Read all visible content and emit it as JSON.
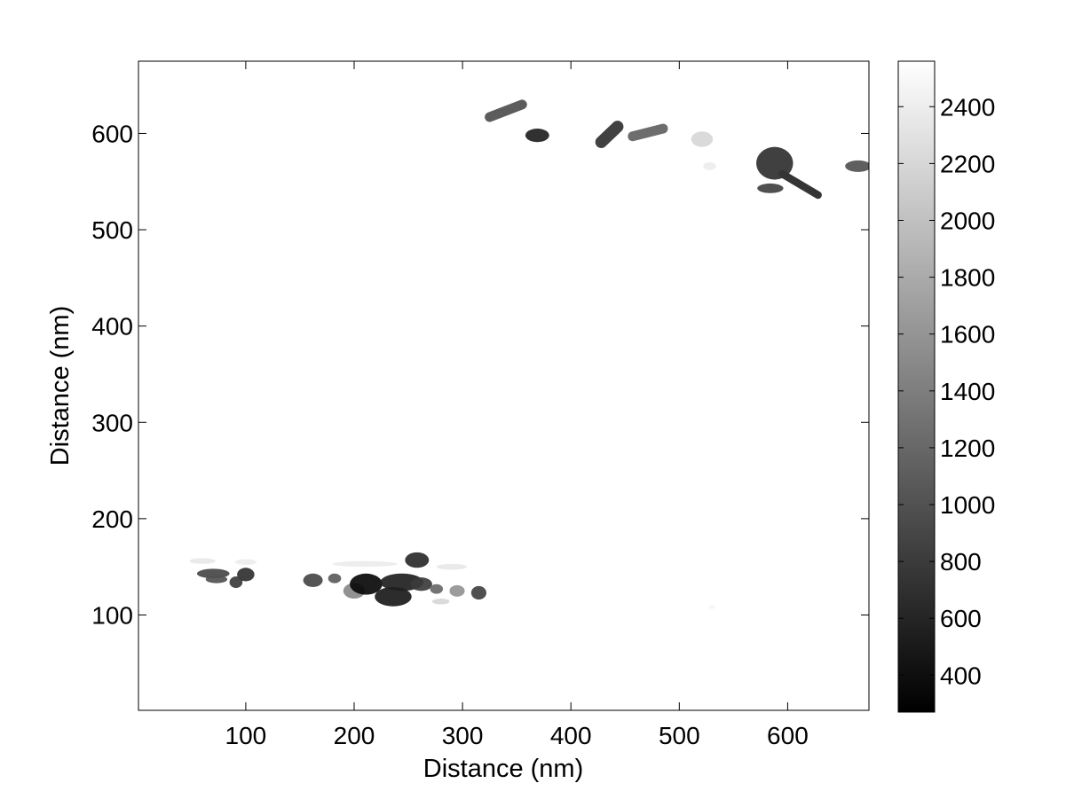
{
  "chart_data": {
    "type": "heatmap",
    "title": "",
    "xlabel": "Distance (nm)",
    "ylabel": "Distance (nm)",
    "xlim": [
      1,
      675
    ],
    "ylim": [
      1,
      675
    ],
    "xticks": [
      100,
      200,
      300,
      400,
      500,
      600
    ],
    "yticks": [
      100,
      200,
      300,
      400,
      500,
      600
    ],
    "xtick_labels": [
      "100",
      "200",
      "300",
      "400",
      "500",
      "600"
    ],
    "ytick_labels": [
      "100",
      "200",
      "300",
      "400",
      "500",
      "600"
    ],
    "colormap": "gray",
    "colorbar": {
      "range": [
        270,
        2560
      ],
      "ticks": [
        400,
        600,
        800,
        1000,
        1200,
        1400,
        1600,
        1800,
        2000,
        2200,
        2400
      ],
      "tick_labels": [
        "400",
        "600",
        "800",
        "1000",
        "1200",
        "1400",
        "1600",
        "1800",
        "2000",
        "2200",
        "2400"
      ]
    },
    "background_value": 2560,
    "features": [
      {
        "shape": "rod",
        "x1": 325,
        "y1": 617,
        "x2": 355,
        "y2": 630,
        "w": 9,
        "value": 1100
      },
      {
        "shape": "ellipse",
        "x": 369,
        "y": 598,
        "rx": 11,
        "ry": 7,
        "value": 560
      },
      {
        "shape": "rod",
        "x1": 428,
        "y1": 591,
        "x2": 443,
        "y2": 607,
        "w": 11,
        "value": 850
      },
      {
        "shape": "rod",
        "x1": 457,
        "y1": 597,
        "x2": 485,
        "y2": 605,
        "w": 9,
        "value": 1250
      },
      {
        "shape": "ellipse",
        "x": 521,
        "y": 594,
        "rx": 10,
        "ry": 8,
        "value": 2200
      },
      {
        "shape": "ellipse",
        "x": 528,
        "y": 566,
        "rx": 6,
        "ry": 4,
        "value": 2400
      },
      {
        "shape": "ellipse",
        "x": 588,
        "y": 569,
        "rx": 17,
        "ry": 17,
        "value": 700
      },
      {
        "shape": "rod",
        "x1": 595,
        "y1": 558,
        "x2": 628,
        "y2": 536,
        "w": 7,
        "value": 750
      },
      {
        "shape": "ellipse",
        "x": 584,
        "y": 543,
        "rx": 12,
        "ry": 5,
        "value": 850
      },
      {
        "shape": "ellipse",
        "x": 665,
        "y": 566,
        "rx": 12,
        "ry": 6,
        "value": 1000
      },
      {
        "shape": "ellipse",
        "x": 70,
        "y": 143,
        "rx": 15,
        "ry": 5,
        "value": 900
      },
      {
        "shape": "ellipse",
        "x": 73,
        "y": 137,
        "rx": 10,
        "ry": 4,
        "value": 1000
      },
      {
        "shape": "ellipse",
        "x": 100,
        "y": 142,
        "rx": 8,
        "ry": 7,
        "value": 700
      },
      {
        "shape": "ellipse",
        "x": 91,
        "y": 134,
        "rx": 6,
        "ry": 6,
        "value": 800
      },
      {
        "shape": "ellipse",
        "x": 162,
        "y": 136,
        "rx": 9,
        "ry": 7,
        "value": 900
      },
      {
        "shape": "ellipse",
        "x": 182,
        "y": 138,
        "rx": 6,
        "ry": 5,
        "value": 1100
      },
      {
        "shape": "ellipse",
        "x": 200,
        "y": 125,
        "rx": 10,
        "ry": 8,
        "value": 1500
      },
      {
        "shape": "ellipse",
        "x": 211,
        "y": 132,
        "rx": 15,
        "ry": 11,
        "value": 350
      },
      {
        "shape": "ellipse",
        "x": 236,
        "y": 119,
        "rx": 17,
        "ry": 10,
        "value": 500
      },
      {
        "shape": "ellipse",
        "x": 244,
        "y": 134,
        "rx": 20,
        "ry": 9,
        "value": 550
      },
      {
        "shape": "ellipse",
        "x": 262,
        "y": 132,
        "rx": 10,
        "ry": 7,
        "value": 800
      },
      {
        "shape": "ellipse",
        "x": 258,
        "y": 157,
        "rx": 11,
        "ry": 8,
        "value": 650
      },
      {
        "shape": "ellipse",
        "x": 276,
        "y": 127,
        "rx": 6,
        "ry": 5,
        "value": 1200
      },
      {
        "shape": "ellipse",
        "x": 295,
        "y": 125,
        "rx": 7,
        "ry": 6,
        "value": 1600
      },
      {
        "shape": "ellipse",
        "x": 315,
        "y": 123,
        "rx": 7,
        "ry": 7,
        "value": 850
      },
      {
        "shape": "ellipse",
        "x": 60,
        "y": 156,
        "rx": 12,
        "ry": 3,
        "value": 2350
      },
      {
        "shape": "ellipse",
        "x": 100,
        "y": 155,
        "rx": 10,
        "ry": 3,
        "value": 2400
      },
      {
        "shape": "ellipse",
        "x": 210,
        "y": 153,
        "rx": 30,
        "ry": 3,
        "value": 2380
      },
      {
        "shape": "ellipse",
        "x": 290,
        "y": 150,
        "rx": 14,
        "ry": 3,
        "value": 2350
      },
      {
        "shape": "ellipse",
        "x": 280,
        "y": 114,
        "rx": 8,
        "ry": 3,
        "value": 2200
      },
      {
        "shape": "ellipse",
        "x": 530,
        "y": 108,
        "rx": 3,
        "ry": 2,
        "value": 2480
      }
    ]
  }
}
